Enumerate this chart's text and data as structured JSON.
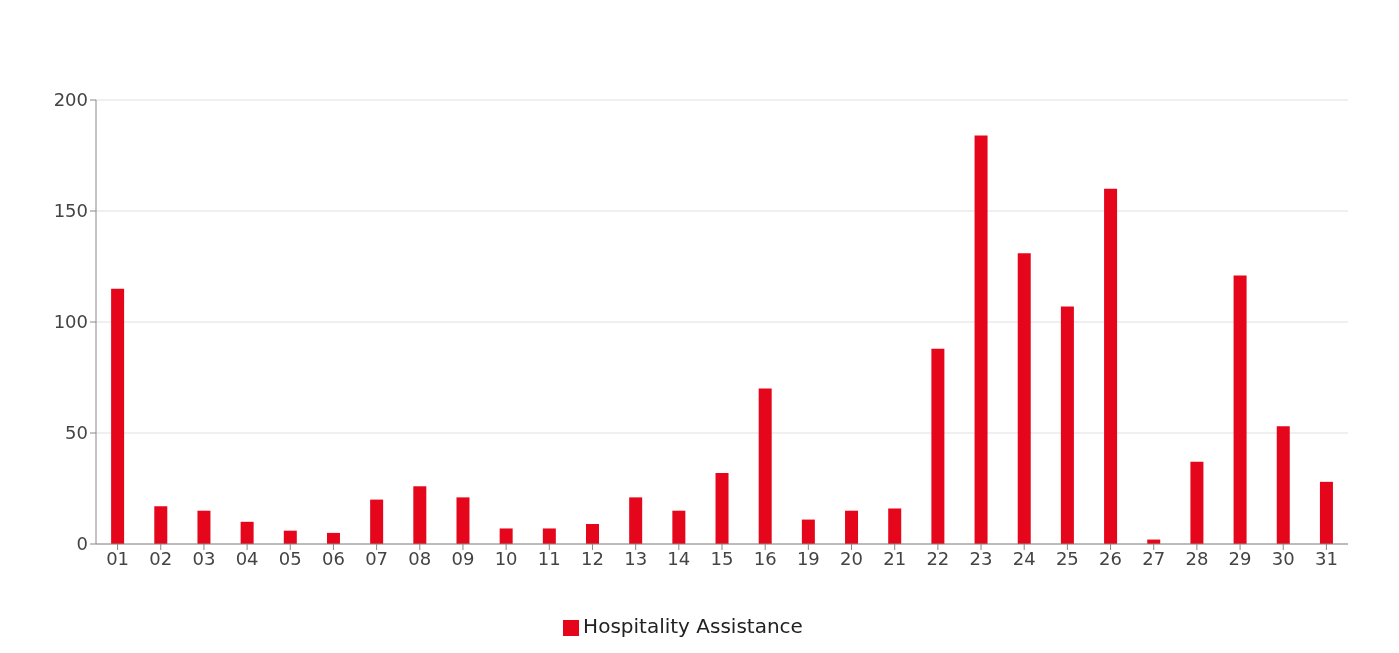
{
  "chart_data": {
    "type": "bar",
    "categories": [
      "01",
      "02",
      "03",
      "04",
      "05",
      "06",
      "07",
      "08",
      "09",
      "10",
      "11",
      "12",
      "13",
      "14",
      "15",
      "16",
      "19",
      "20",
      "21",
      "22",
      "23",
      "24",
      "25",
      "26",
      "27",
      "28",
      "29",
      "30",
      "31"
    ],
    "series": [
      {
        "name": "Hospitality Assistance",
        "color": "#e5061b",
        "values": [
          115,
          17,
          15,
          10,
          6,
          5,
          20,
          26,
          21,
          7,
          7,
          9,
          21,
          15,
          32,
          70,
          11,
          15,
          16,
          88,
          184,
          131,
          107,
          160,
          2,
          37,
          121,
          53,
          28
        ]
      }
    ],
    "ylim": [
      0,
      200
    ],
    "yticks": [
      0,
      50,
      100,
      150,
      200
    ],
    "grid": "y",
    "legend": "bottom"
  }
}
